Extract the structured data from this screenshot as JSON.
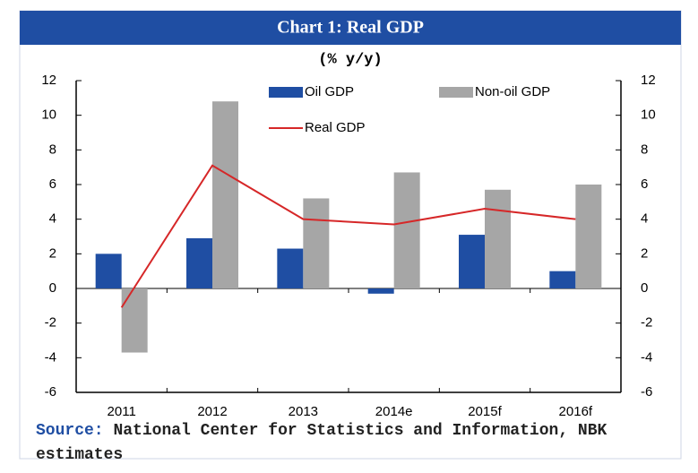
{
  "chart_data": {
    "type": "bar",
    "title": "Chart 1: Real GDP",
    "subtitle": "(% y/y)",
    "categories": [
      "2011",
      "2012",
      "2013",
      "2014e",
      "2015f",
      "2016f"
    ],
    "series": [
      {
        "name": "Oil GDP",
        "type": "bar",
        "color": "#1f4ea3",
        "values": [
          2.0,
          2.9,
          2.3,
          -0.3,
          3.1,
          1.0
        ]
      },
      {
        "name": "Non-oil GDP",
        "type": "bar",
        "color": "#a6a6a6",
        "values": [
          -3.7,
          10.8,
          5.2,
          6.7,
          5.7,
          6.0
        ]
      },
      {
        "name": "Real GDP",
        "type": "line",
        "color": "#d62728",
        "values": [
          -1.1,
          7.1,
          4.0,
          3.7,
          4.6,
          4.0
        ]
      }
    ],
    "ylim": [
      -6,
      12
    ],
    "yticks": [
      -6,
      -4,
      -2,
      0,
      2,
      4,
      6,
      8,
      10,
      12
    ],
    "y2lim": [
      -6,
      12
    ],
    "y2ticks": [
      -6,
      -4,
      -2,
      0,
      2,
      4,
      6,
      8,
      10,
      12
    ],
    "legend": "top",
    "source_label": "Source:",
    "source_text": "National Center for Statistics and Information, NBK estimates"
  }
}
